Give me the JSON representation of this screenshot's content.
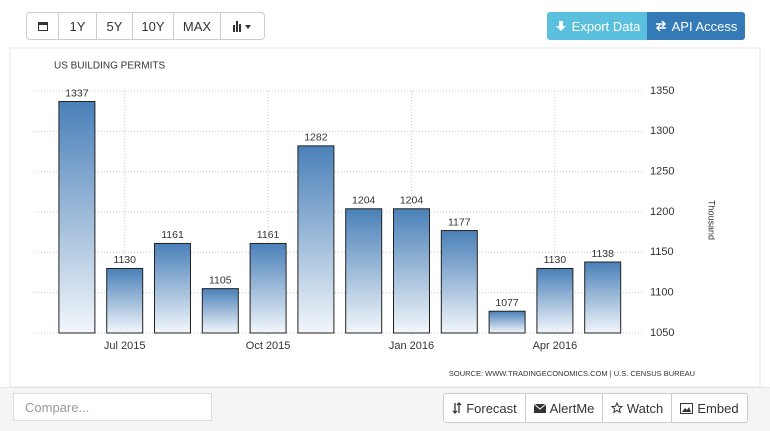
{
  "toolbar": {
    "ranges": [
      "1Y",
      "5Y",
      "10Y",
      "MAX"
    ],
    "export": "Export Data",
    "api": "API Access"
  },
  "chart_data": {
    "type": "bar",
    "title": "US BUILDING PERMITS",
    "categories": [
      null,
      "Jul 2015",
      null,
      null,
      "Oct 2015",
      null,
      null,
      "Jan 2016",
      null,
      null,
      "Apr 2016",
      null
    ],
    "values": [
      1337,
      1130,
      1161,
      1105,
      1161,
      1282,
      1204,
      1204,
      1177,
      1077,
      1130,
      1138
    ],
    "color": "#4a80b8",
    "ylim": [
      1050,
      1350
    ],
    "yticks": [
      1050,
      1100,
      1150,
      1200,
      1250,
      1300,
      1350
    ],
    "y_label": "Thousand",
    "grid": true,
    "source": "SOURCE: WWW.TRADINGECONOMICS.COM | U.S. CENSUS BUREAU"
  },
  "footer": {
    "compare_placeholder": "Compare...",
    "buttons": [
      "Forecast",
      "AlertMe",
      "Watch",
      "Embed"
    ]
  }
}
